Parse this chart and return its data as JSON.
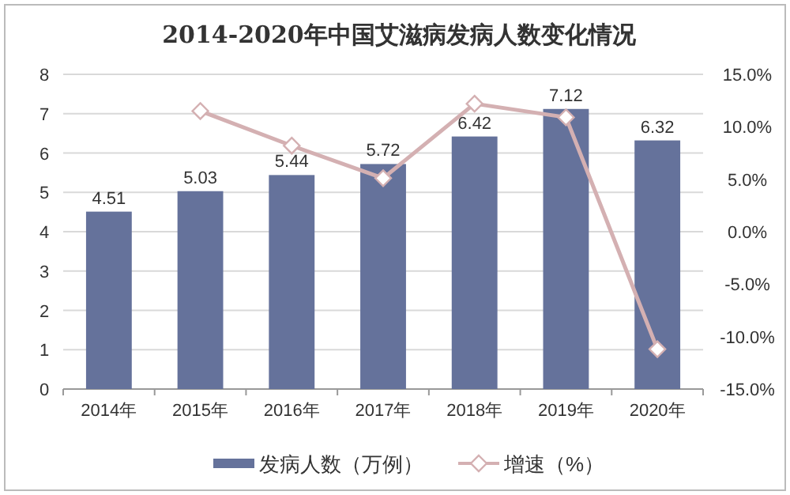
{
  "chart_data": {
    "type": "bar",
    "title": "2014-2020年中国艾滋病发病人数变化情况",
    "categories": [
      "2014年",
      "2015年",
      "2016年",
      "2017年",
      "2018年",
      "2019年",
      "2020年"
    ],
    "series": [
      {
        "name": "发病人数（万例）",
        "color": "#65729b",
        "values": [
          4.51,
          5.03,
          5.44,
          5.72,
          6.42,
          7.12,
          6.32
        ],
        "value_labels": [
          "4.51",
          "5.03",
          "5.44",
          "5.72",
          "6.42",
          "7.12",
          "6.32"
        ]
      },
      {
        "name": "增速（%）",
        "type": "line",
        "axis": "y2",
        "color": "#d4b0b2",
        "marker": "diamond",
        "values": [
          null,
          11.5,
          8.2,
          5.1,
          12.2,
          10.9,
          -11.2
        ]
      }
    ],
    "ylim": [
      0,
      8
    ],
    "yticks": [
      0,
      1,
      2,
      3,
      4,
      5,
      6,
      7,
      8
    ],
    "y2lim": [
      -15,
      15
    ],
    "y2ticks": [
      {
        "value": -15,
        "label": "-15.0%"
      },
      {
        "value": -10,
        "label": "-10.0%"
      },
      {
        "value": -5,
        "label": "-5.0%"
      },
      {
        "value": 0,
        "label": "0.0%"
      },
      {
        "value": 5,
        "label": "5.0%"
      },
      {
        "value": 10,
        "label": "10.0%"
      },
      {
        "value": 15,
        "label": "15.0%"
      }
    ],
    "grid": "y",
    "legend": "bottom"
  }
}
